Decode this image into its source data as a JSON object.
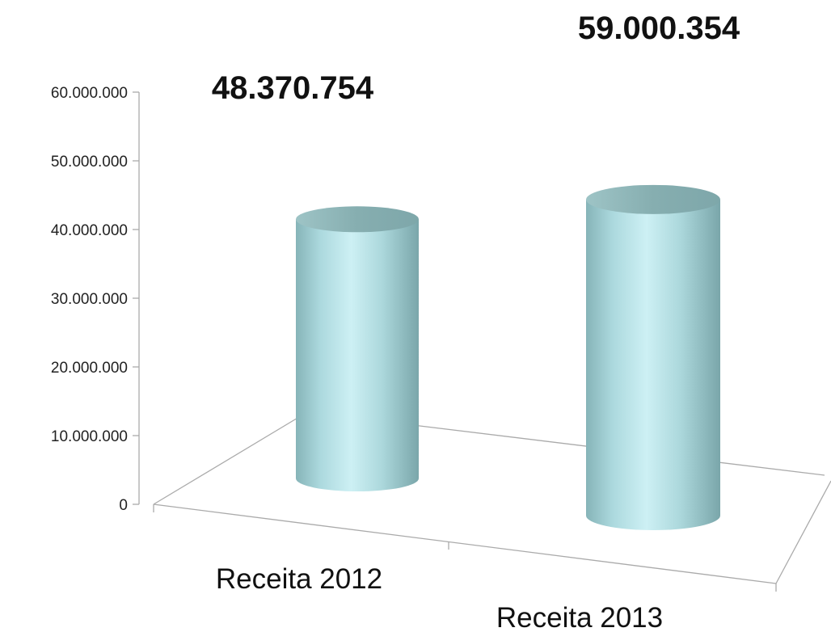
{
  "chart_data": {
    "type": "bar",
    "style": "3d-cylinder",
    "categories": [
      "Receita 2012",
      "Receita 2013"
    ],
    "values": [
      48370754,
      59000354
    ],
    "data_labels": [
      "48.370.754",
      "59.000.354"
    ],
    "ylim": [
      0,
      60000000
    ],
    "y_ticks": [
      0,
      10000000,
      20000000,
      30000000,
      40000000,
      50000000,
      60000000
    ],
    "y_tick_labels": [
      "0",
      "10.000.000",
      "20.000.000",
      "30.000.000",
      "40.000.000",
      "50.000.000",
      "60.000.000"
    ],
    "title": "",
    "xlabel": "",
    "ylabel": "",
    "grid": false,
    "legend": "none",
    "colors": {
      "bar": "#bfe6ea",
      "bar_dark": "#7fb0b5",
      "bar_top": "#8fb9bc",
      "axis": "#aaaaaa"
    }
  }
}
